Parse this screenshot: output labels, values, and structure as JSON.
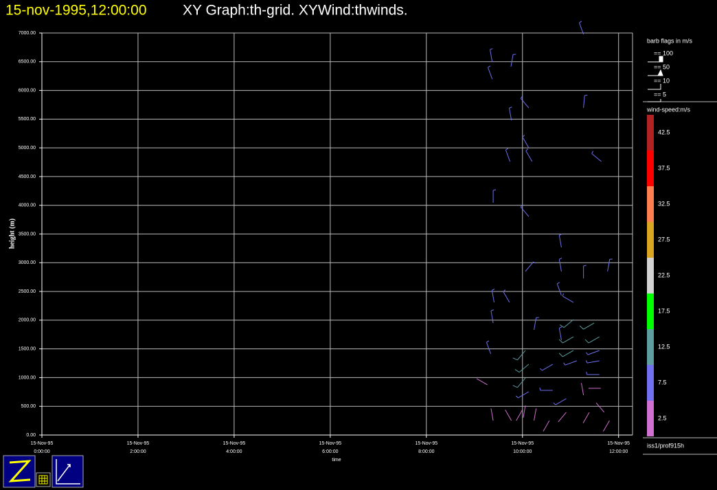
{
  "chart_data": {
    "type": "windbarb",
    "title_time": "15-nov-1995,12:00:00",
    "title": "XY Graph:th-grid.  XYWind:thwinds.",
    "ylabel": "height (m)",
    "xlabel": "time",
    "xlim": [
      0,
      12.29
    ],
    "ylim": [
      0,
      7000
    ],
    "grid": true,
    "xticks": [
      {
        "value": 0,
        "label": [
          "15-Nov-95",
          "0:00:00"
        ]
      },
      {
        "value": 2,
        "label": [
          "15-Nov-95",
          "2:00:00"
        ]
      },
      {
        "value": 4,
        "label": [
          "15-Nov-95",
          "4:00:00"
        ]
      },
      {
        "value": 6,
        "label": [
          "15-Nov-95",
          "6:00:00"
        ]
      },
      {
        "value": 8,
        "label": [
          "15-Nov-95",
          "8:00:00"
        ]
      },
      {
        "value": 10,
        "label": [
          "15-Nov-95",
          "10:00:00"
        ]
      },
      {
        "value": 12,
        "label": [
          "15-Nov-95",
          "12:00:00"
        ]
      }
    ],
    "yticks": [
      {
        "value": 0,
        "label": "0.00"
      },
      {
        "value": 500,
        "label": "500.00"
      },
      {
        "value": 1000,
        "label": "1000.00"
      },
      {
        "value": 1500,
        "label": "1500.00"
      },
      {
        "value": 2000,
        "label": "2000.00"
      },
      {
        "value": 2500,
        "label": "2500.00"
      },
      {
        "value": 3000,
        "label": "3000.00"
      },
      {
        "value": 3500,
        "label": "3500.00"
      },
      {
        "value": 4000,
        "label": "4000.00"
      },
      {
        "value": 4500,
        "label": "4500.00"
      },
      {
        "value": 5000,
        "label": "5000.00"
      },
      {
        "value": 5500,
        "label": "5500.00"
      },
      {
        "value": 6000,
        "label": "6000.00"
      },
      {
        "value": 6500,
        "label": "6500.00"
      },
      {
        "value": 7000,
        "label": "7000.00"
      }
    ],
    "barbs": {
      "x": [
        9.37,
        9.37,
        9.76,
        9.77,
        10.13,
        11.27,
        10.13,
        9.74,
        10.2,
        11.64,
        9.39,
        10.13,
        10.81,
        10.06,
        10.81,
        11.27,
        11.77,
        9.41,
        9.73,
        10.81,
        11.06,
        9.39,
        10.24,
        11.06,
        11.49,
        10.81,
        11.06,
        11.6,
        10.06,
        11.06,
        11.6,
        9.34,
        10.13,
        10.63,
        11.13,
        11.6,
        10.06,
        11.6,
        9.27,
        10.13,
        10.63,
        10.91,
        11.27,
        11.63,
        10.06,
        9.77,
        9.87,
        9.39,
        10.24,
        10.56,
        10.91,
        11.39,
        11.7,
        11.81,
        11.27
      ],
      "y": [
        6498,
        6198,
        6414,
        5480,
        5696,
        5696,
        5002,
        4762,
        4762,
        4762,
        4045,
        3805,
        3267,
        2848,
        2848,
        2728,
        2848,
        2309,
        2309,
        2429,
        2309,
        1950,
        1831,
        2010,
        1950,
        1651,
        1711,
        1711,
        1472,
        1472,
        1472,
        1412,
        1232,
        1232,
        1292,
        1292,
        993,
        1053,
        874,
        754,
        778,
        634,
        694,
        814,
        515,
        251,
        251,
        251,
        251,
        251,
        395,
        395,
        395,
        251,
        6976
      ],
      "speed": [
        8,
        8,
        7,
        6,
        7,
        7,
        8,
        7,
        8,
        8,
        7,
        8,
        8,
        8,
        8,
        8,
        8,
        8,
        8,
        8,
        7,
        6,
        8,
        13,
        13,
        8,
        13,
        10,
        13,
        13,
        9,
        7,
        13,
        9,
        9,
        9,
        13,
        8,
        4,
        8,
        6,
        5,
        4,
        4,
        4,
        4,
        4,
        4,
        4,
        4,
        4,
        4,
        4,
        4,
        7
      ],
      "direction": [
        350,
        340,
        10,
        350,
        320,
        5,
        330,
        340,
        330,
        310,
        0,
        320,
        350,
        40,
        350,
        0,
        10,
        350,
        330,
        340,
        300,
        350,
        10,
        230,
        240,
        350,
        240,
        240,
        220,
        240,
        250,
        340,
        230,
        240,
        250,
        260,
        220,
        270,
        300,
        240,
        270,
        240,
        350,
        270,
        190,
        330,
        30,
        350,
        10,
        210,
        220,
        210,
        320,
        210,
        340
      ]
    },
    "flag_title": "barb flags in m/s",
    "flag_labels": [
      "== 100",
      "== 50",
      "== 10",
      "== 5"
    ],
    "colorbar_title": "wind-speed:m/s",
    "colorbar": {
      "values": [
        2.5,
        7.5,
        12.5,
        17.5,
        22.5,
        27.5,
        32.5,
        37.5,
        42.5
      ],
      "colors": [
        "#d070d0",
        "#7070f0",
        "#5f9ea0",
        "#00ff00",
        "#d3d3d3",
        "#daa520",
        "#ff7f50",
        "#ff0000",
        "#b22222"
      ]
    },
    "platform": "iss1/prof915h"
  }
}
